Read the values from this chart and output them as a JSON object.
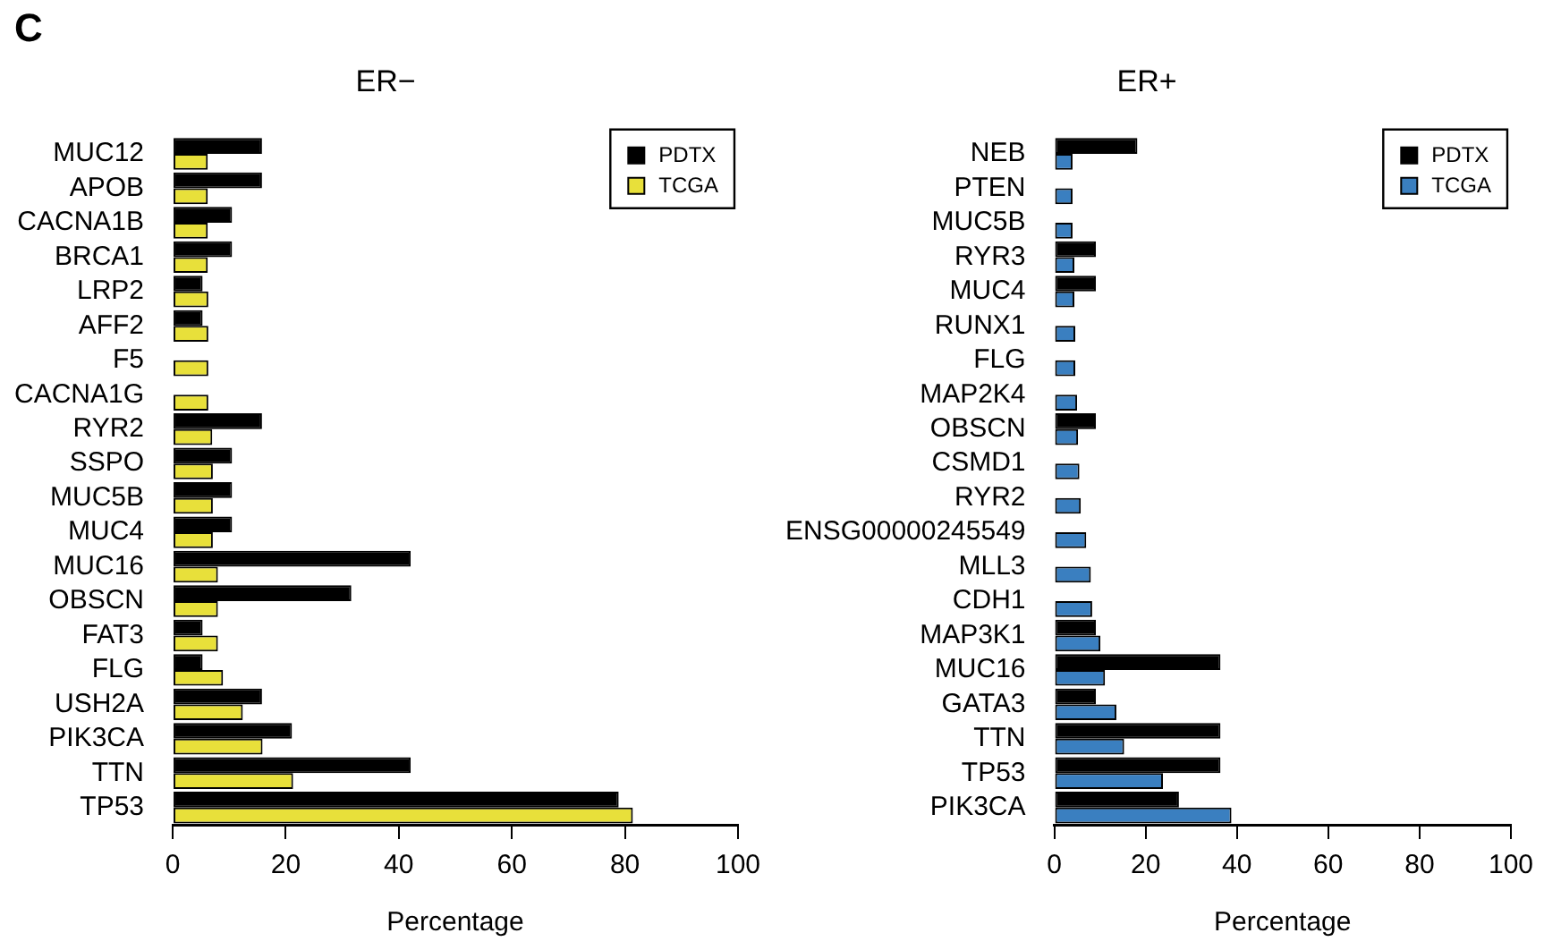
{
  "chart_data": [
    {
      "type": "bar",
      "orientation": "horizontal",
      "title": "ER−",
      "xlabel": "Percentage",
      "annotations": [
        "C"
      ],
      "categories": [
        "MUC12",
        "APOB",
        "CACNA1B",
        "BRCA1",
        "LRP2",
        "AFF2",
        "F5",
        "CACNA1G",
        "RYR2",
        "SSPO",
        "MUC5B",
        "MUC4",
        "MUC16",
        "OBSCN",
        "FAT3",
        "FLG",
        "USH2A",
        "PIK3CA",
        "TTN",
        "TP53"
      ],
      "series": [
        {
          "name": "PDTX",
          "color": "#000000",
          "values": [
            15.8,
            15.8,
            10.5,
            10.5,
            5.3,
            5.3,
            0,
            0,
            15.8,
            10.5,
            10.5,
            10.5,
            42.1,
            31.6,
            5.3,
            5.3,
            15.8,
            21.1,
            42.1,
            78.9
          ]
        },
        {
          "name": "TCGA",
          "color": "#e8e03a",
          "values": [
            6.2,
            6.2,
            6.2,
            6.2,
            6.3,
            6.3,
            6.3,
            6.3,
            7.0,
            7.1,
            7.1,
            7.1,
            8.0,
            8.0,
            8.0,
            8.9,
            12.4,
            15.9,
            21.3,
            81.4
          ]
        }
      ],
      "xlim": [
        0,
        100
      ],
      "xticks": [
        0,
        20,
        40,
        60,
        80,
        100
      ],
      "grid": false,
      "legend": "top right"
    },
    {
      "type": "bar",
      "orientation": "horizontal",
      "title": "ER+",
      "xlabel": "Percentage",
      "categories": [
        "NEB",
        "PTEN",
        "MUC5B",
        "RYR3",
        "MUC4",
        "RUNX1",
        "FLG",
        "MAP2K4",
        "OBSCN",
        "CSMD1",
        "RYR2",
        "ENSG00000245549",
        "MLL3",
        "CDH1",
        "MAP3K1",
        "MUC16",
        "GATA3",
        "TTN",
        "TP53",
        "PIK3CA"
      ],
      "series": [
        {
          "name": "PDTX",
          "color": "#000000",
          "values": [
            18.2,
            0,
            0,
            9.1,
            9.1,
            0,
            0,
            0,
            9.1,
            0,
            0,
            0,
            0,
            0,
            9.1,
            36.4,
            9.1,
            36.4,
            36.4,
            27.3
          ]
        },
        {
          "name": "TCGA",
          "color": "#3a7fc0",
          "values": [
            4.0,
            4.0,
            4.0,
            4.4,
            4.4,
            4.6,
            4.6,
            5.0,
            5.2,
            5.5,
            5.8,
            7.0,
            8.0,
            8.3,
            10.1,
            11.1,
            13.6,
            15.3,
            23.8,
            38.8
          ]
        }
      ],
      "xlim": [
        0,
        100
      ],
      "xticks": [
        0,
        20,
        40,
        60,
        80,
        100
      ],
      "grid": false,
      "legend": "top right"
    }
  ]
}
